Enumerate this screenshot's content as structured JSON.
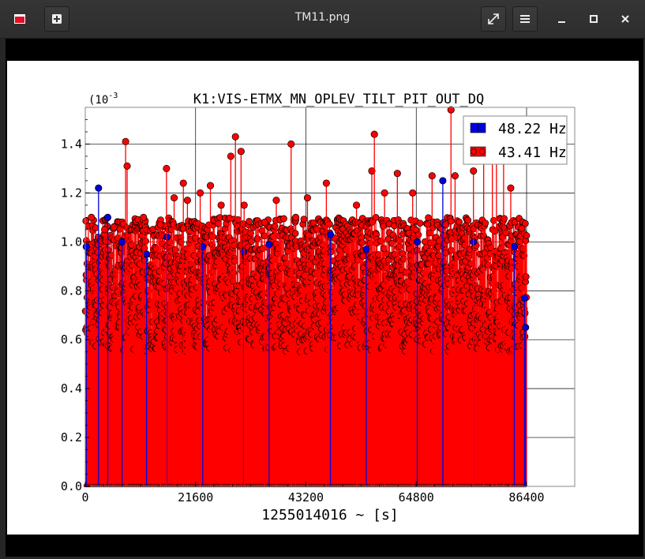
{
  "window": {
    "title": "TM11.png",
    "icons": {
      "app": "app-icon",
      "new_tab": "plus-icon",
      "fullscreen": "fullscreen-icon",
      "menu": "hamburger-menu-icon",
      "minimize": "minimize-icon",
      "maximize": "maximize-icon",
      "close": "close-icon"
    }
  },
  "chart_data": {
    "type": "scatter",
    "style": "stem",
    "title": "K1:VIS-ETMX_MN_OPLEV_TILT_PIT_OUT_DQ",
    "xlabel": "1255014016 ~ [s]",
    "ylabel": "",
    "y_exponent_label": "(10",
    "y_exponent_power": "-3",
    "xlim": [
      0,
      86400
    ],
    "ylim": [
      0.0,
      1.55
    ],
    "x_ticks": [
      0,
      21600,
      43200,
      64800,
      86400
    ],
    "x_tick_labels": [
      "0",
      "21600",
      "43200",
      "64800",
      "86400"
    ],
    "y_ticks": [
      0.0,
      0.2,
      0.4,
      0.6,
      0.8,
      1.0,
      1.2,
      1.4
    ],
    "y_tick_labels": [
      "0.0",
      "0.2",
      "0.4",
      "0.6",
      "0.8",
      "1.0",
      "1.2",
      "1.4"
    ],
    "grid": true,
    "legend_position": "top-right",
    "series": [
      {
        "name": "48.22 Hz",
        "color": "#0000dd",
        "x": [
          200,
          2600,
          4400,
          7200,
          12000,
          16000,
          23000,
          31000,
          36000,
          48000,
          55000,
          65000,
          70000,
          76000,
          84000,
          86000,
          86200
        ],
        "values": [
          0.98,
          1.22,
          1.1,
          1.0,
          0.95,
          1.02,
          0.98,
          0.96,
          0.99,
          1.03,
          0.97,
          1.0,
          1.25,
          1.0,
          0.98,
          0.77,
          0.65
        ]
      },
      {
        "name": "43.41 Hz",
        "color": "#ff0000",
        "x": [
          1200,
          3800,
          5600,
          7900,
          8200,
          11400,
          14700,
          15900,
          17400,
          19200,
          20000,
          22500,
          24500,
          26600,
          28500,
          29400,
          30500,
          31100,
          35100,
          37400,
          40300,
          41200,
          43500,
          47200,
          53100,
          56100,
          56600,
          58600,
          61100,
          64100,
          67900,
          71600,
          72400,
          76000,
          78000,
          79700,
          80500,
          81900,
          83300
        ],
        "values": [
          1.1,
          1.05,
          1.06,
          1.41,
          1.31,
          1.1,
          1.07,
          1.3,
          1.18,
          1.24,
          1.17,
          1.2,
          1.23,
          1.15,
          1.35,
          1.43,
          1.37,
          1.15,
          1.08,
          1.17,
          1.4,
          1.1,
          1.18,
          1.24,
          1.15,
          1.29,
          1.44,
          1.2,
          1.28,
          1.2,
          1.27,
          1.54,
          1.27,
          1.29,
          1.35,
          1.4,
          1.33,
          1.38,
          1.22
        ]
      }
    ],
    "band": {
      "color": "#ff0000",
      "typical_min": 0.55,
      "typical_max": 1.1,
      "point_count": 2000
    }
  }
}
